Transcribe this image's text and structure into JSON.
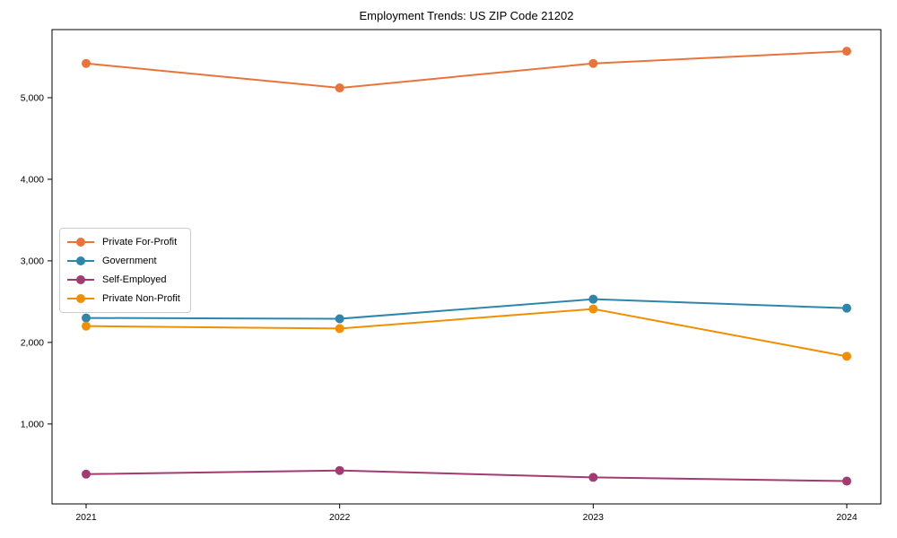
{
  "chart_data": {
    "type": "line",
    "title": "Employment Trends: US ZIP Code 21202",
    "categories": [
      "2021",
      "2022",
      "2023",
      "2024"
    ],
    "series": [
      {
        "name": "Private For-Profit",
        "color": "#E8743B",
        "values": [
          5420,
          5120,
          5420,
          5570
        ]
      },
      {
        "name": "Government",
        "color": "#2E86AB",
        "values": [
          2300,
          2290,
          2530,
          2420
        ]
      },
      {
        "name": "Self-Employed",
        "color": "#A23B72",
        "values": [
          385,
          430,
          345,
          300
        ]
      },
      {
        "name": "Private Non-Profit",
        "color": "#F18F01",
        "values": [
          2200,
          2170,
          2410,
          1830
        ]
      }
    ],
    "xlabel": "",
    "ylabel": "",
    "ylim": [
      20,
      5835
    ],
    "yticks": [
      1000,
      2000,
      3000,
      4000,
      5000
    ],
    "ytick_labels": [
      "1,000",
      "2,000",
      "3,000",
      "4,000",
      "5,000"
    ],
    "grid": false,
    "legend_position": "center-left",
    "axis_color": "#000000",
    "background_color": "#ffffff",
    "marker_radius": 5,
    "line_width": 2
  }
}
